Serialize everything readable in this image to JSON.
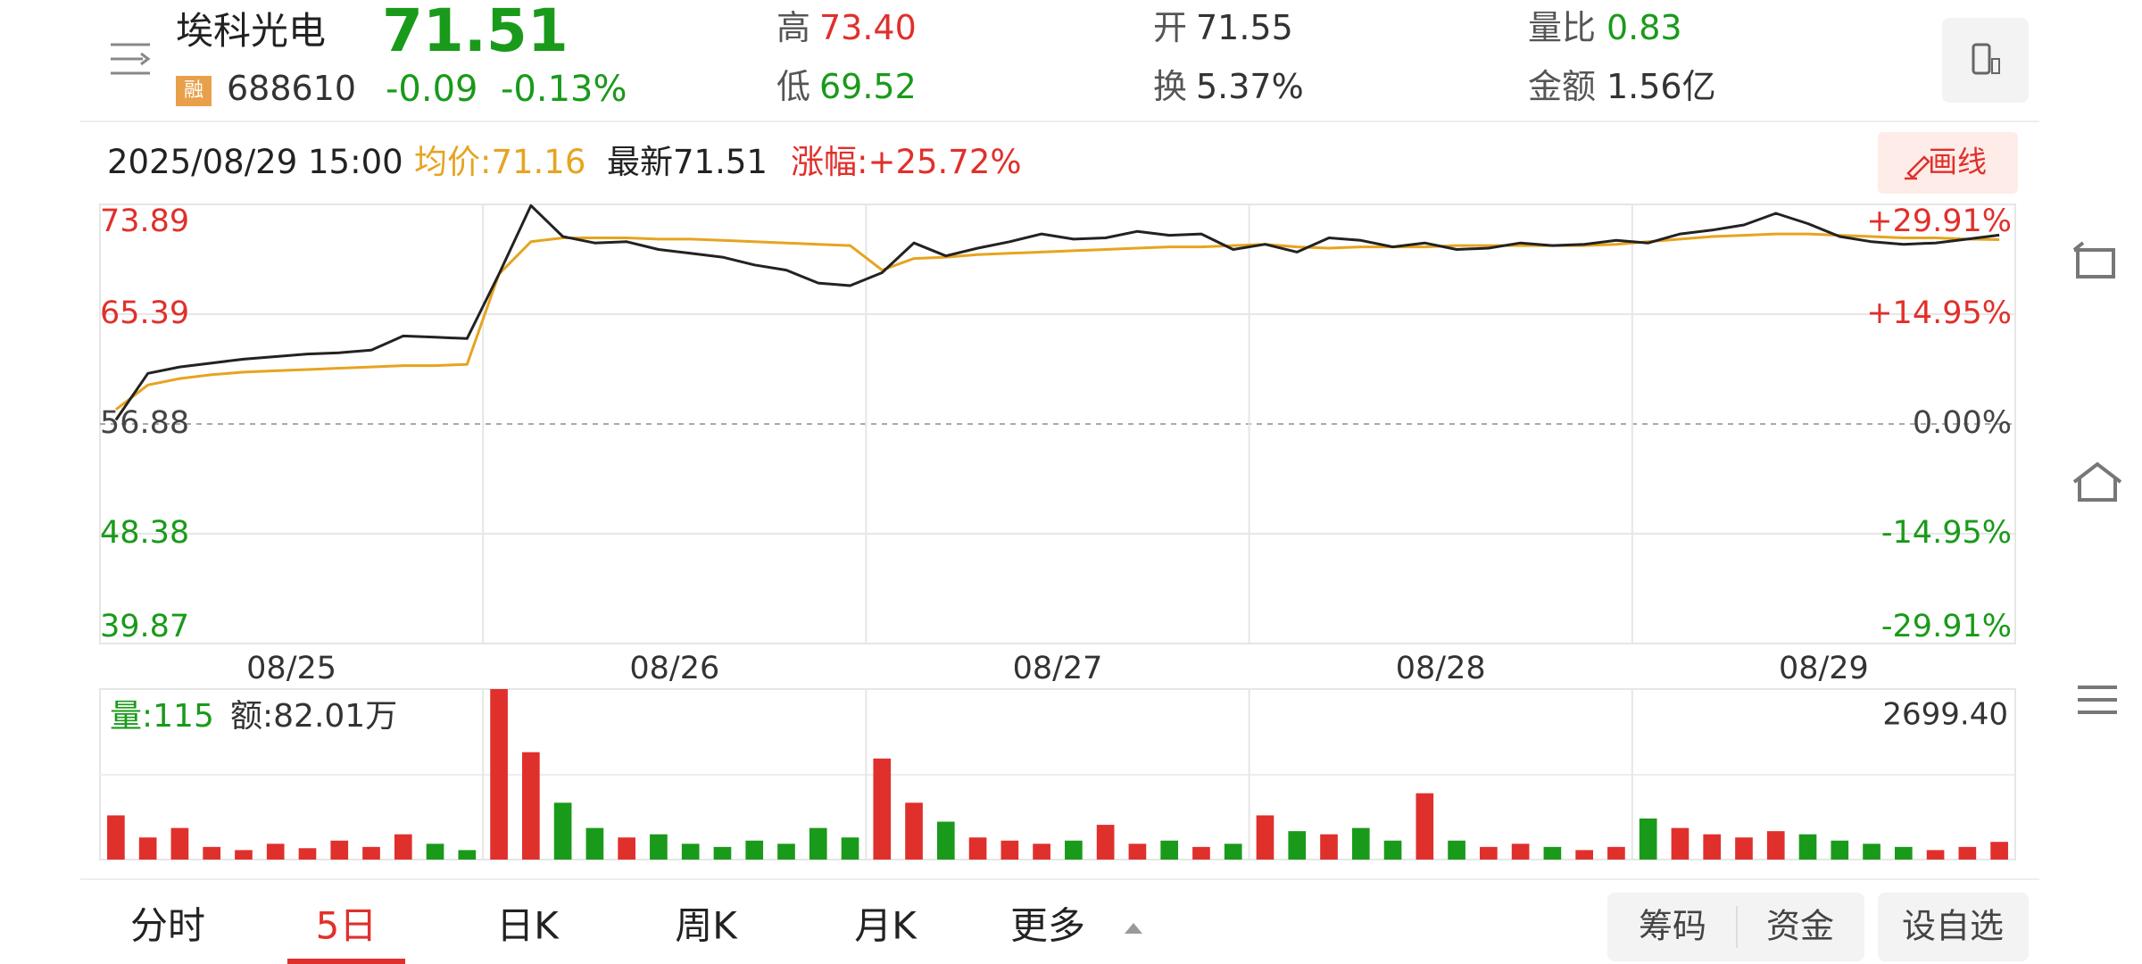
{
  "header": {
    "name": "埃科光电",
    "price": "71.51",
    "badge": "融",
    "code": "688610",
    "change": "-0.09",
    "change_pct": "-0.13%",
    "stats": [
      {
        "label": "高",
        "value": "73.40",
        "tone": "up"
      },
      {
        "label": "低",
        "value": "69.52",
        "tone": "down"
      },
      {
        "label": "开",
        "value": "71.55",
        "tone": "flat"
      },
      {
        "label": "换",
        "value": "5.37%",
        "tone": "flat"
      },
      {
        "label": "量比",
        "value": "0.83",
        "tone": "down"
      },
      {
        "label": "金额",
        "value": "1.56亿",
        "tone": "flat"
      }
    ]
  },
  "info": {
    "time": "2025/08/29 15:00",
    "avg": "均价:71.16",
    "latest": "最新71.51",
    "gain": "涨幅:+25.72%",
    "draw_button": "画线"
  },
  "chart": {
    "type": "line",
    "categories": [
      "08/25",
      "08/26",
      "08/27",
      "08/28",
      "08/29"
    ],
    "points_per_day": 12,
    "ylim": [
      39.87,
      73.89
    ],
    "yticks": [
      73.89,
      65.39,
      56.88,
      48.38,
      39.87
    ],
    "y2lim": [
      -29.91,
      29.91
    ],
    "y2ticks": [
      {
        "value": 29.91,
        "label": "+29.91%"
      },
      {
        "value": 14.95,
        "label": "+14.95%"
      },
      {
        "value": 0,
        "label": "0.00%"
      },
      {
        "value": -14.95,
        "label": "-14.95%"
      },
      {
        "value": -29.91,
        "label": "-29.91%"
      }
    ],
    "series": [
      {
        "name": "最新",
        "color": "#222222",
        "values": [
          57.2,
          60.8,
          61.3,
          61.6,
          61.9,
          62.1,
          62.3,
          62.4,
          62.6,
          63.7,
          63.6,
          63.5,
          68.5,
          73.8,
          71.4,
          70.9,
          71.0,
          70.4,
          70.1,
          69.8,
          69.2,
          68.8,
          67.8,
          67.6,
          68.6,
          70.9,
          69.9,
          70.5,
          71.0,
          71.6,
          71.2,
          71.3,
          71.8,
          71.5,
          71.6,
          70.4,
          70.8,
          70.2,
          71.3,
          71.1,
          70.6,
          70.9,
          70.4,
          70.5,
          70.9,
          70.7,
          70.8,
          71.1,
          70.9,
          71.6,
          71.9,
          72.3,
          73.2,
          72.4,
          71.4,
          71.0,
          70.8,
          70.9,
          71.2,
          71.51
        ]
      },
      {
        "name": "均价",
        "color": "#e6a420",
        "values": [
          58.0,
          59.9,
          60.4,
          60.7,
          60.9,
          61.0,
          61.1,
          61.2,
          61.3,
          61.4,
          61.4,
          61.5,
          68.5,
          71.0,
          71.3,
          71.3,
          71.3,
          71.2,
          71.2,
          71.1,
          71.0,
          70.9,
          70.8,
          70.7,
          68.8,
          69.7,
          69.8,
          70.0,
          70.1,
          70.2,
          70.3,
          70.4,
          70.5,
          70.6,
          70.6,
          70.7,
          70.8,
          70.6,
          70.5,
          70.6,
          70.6,
          70.6,
          70.7,
          70.7,
          70.7,
          70.7,
          70.7,
          70.8,
          71.0,
          71.2,
          71.4,
          71.5,
          71.6,
          71.6,
          71.5,
          71.4,
          71.3,
          71.3,
          71.2,
          71.16
        ]
      }
    ]
  },
  "volume": {
    "type": "bar",
    "volume_label": "量:115",
    "amount_label": "额:82.01万",
    "ylim": [
      0,
      2699.4
    ],
    "yticks": [
      {
        "value": 2699.4,
        "label": "2699.40"
      }
    ],
    "up_color": "#e0302c",
    "down_color": "#1a9a1a",
    "values": [
      700,
      350,
      500,
      200,
      150,
      250,
      180,
      300,
      200,
      400,
      250,
      150,
      2699.4,
      1700,
      900,
      500,
      350,
      400,
      250,
      200,
      300,
      250,
      500,
      350,
      1600,
      900,
      600,
      350,
      300,
      250,
      300,
      550,
      250,
      300,
      200,
      250,
      700,
      450,
      400,
      500,
      300,
      1050,
      300,
      200,
      250,
      200,
      150,
      200,
      650,
      500,
      400,
      350,
      450,
      400,
      300,
      250,
      200,
      150,
      200,
      280
    ]
  },
  "tabs": {
    "items": [
      "分时",
      "5日",
      "日K",
      "周K",
      "月K",
      "更多"
    ],
    "selected": 1
  },
  "buttons": [
    "筹码",
    "资金",
    "设自选"
  ]
}
